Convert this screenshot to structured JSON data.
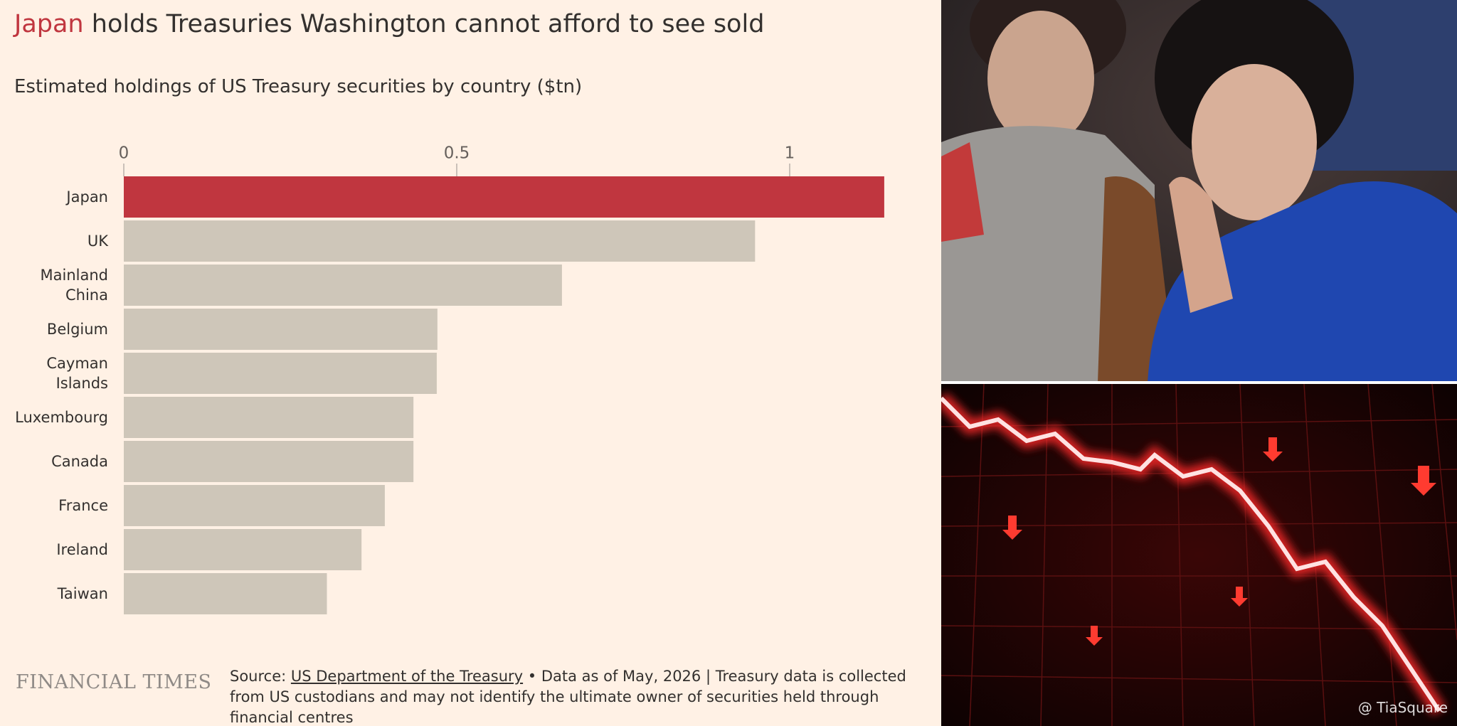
{
  "chart_data": {
    "type": "bar",
    "orientation": "horizontal",
    "title_highlight": "Japan",
    "title": "holds Treasuries Washington cannot afford to see sold",
    "subtitle": "Estimated holdings of US Treasury securities by country ($tn)",
    "categories": [
      "Japan",
      "UK",
      "Mainland China",
      "Belgium",
      "Cayman Islands",
      "Luxembourg",
      "Canada",
      "France",
      "Ireland",
      "Taiwan"
    ],
    "values": [
      1.142,
      0.948,
      0.658,
      0.471,
      0.47,
      0.435,
      0.435,
      0.392,
      0.357,
      0.305
    ],
    "colors": [
      "#c0363f",
      "#cec6b9",
      "#cec6b9",
      "#cec6b9",
      "#cec6b9",
      "#cec6b9",
      "#cec6b9",
      "#cec6b9",
      "#cec6b9",
      "#cec6b9"
    ],
    "title_highlight_color": "#c0363f",
    "xlim": [
      0,
      1.2
    ],
    "xticks": [
      0,
      0.5,
      1
    ],
    "brand": "FINANCIAL TIMES",
    "source_label": "Source:",
    "source_link": "US Department of the Treasury",
    "source_note": "• Data as of May, 2026 | Treasury data is collected from US custodians and may not identify the ultimate owner of securities held through financial centres"
  },
  "image": {
    "watermark": "@ TiaSquare"
  }
}
